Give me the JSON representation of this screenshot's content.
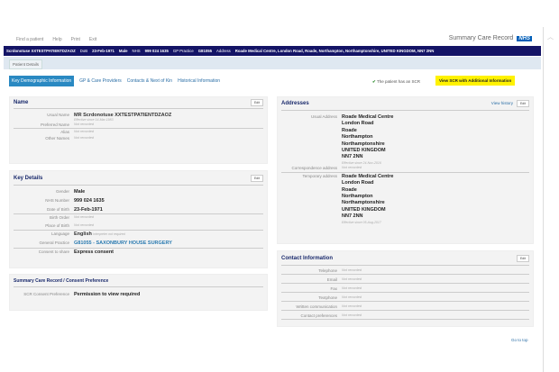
{
  "menu": [
    "Find a patient",
    "Help",
    "Print",
    "Exit"
  ],
  "brand": {
    "title": "Summary Care Record",
    "logo": "NHS"
  },
  "banner": {
    "name": "Scrdonotuse XXTESTPATIENTDZAOZ",
    "dob_label": "DoB",
    "dob": "23-Feb-1971",
    "gender": "Male",
    "nhs_label": "NHS",
    "nhs": "999 024 1635",
    "gp_label": "GP Practice",
    "gp": "G81055",
    "address_label": "Address",
    "address": "Roade Medical Centre, London Road, Roade, Northampton, Northamptonshire, UNITED KINGDOM, NN7 2NN"
  },
  "tab": "Patient Details",
  "subnav": [
    "Key Demographic Information",
    "GP & Care Providers",
    "Contacts & Next of Kin",
    "Historical Information"
  ],
  "scr_note": "The patient has an SCR",
  "scr_button": "View SCR with Additional Information",
  "edit": "Edit",
  "name_panel": {
    "title": "Name",
    "usual_label": "Usual Name",
    "usual": "MR Scrdonotuse XXTESTPATIENTDZAOZ",
    "effective": "Effective since 14-Mar-1983",
    "preferred_label": "Preferred Name",
    "preferred": "Not recorded",
    "alias_label": "Alias",
    "alias": "Not recorded",
    "other_label": "Other Names",
    "other": "Not recorded"
  },
  "key_panel": {
    "title": "Key Details",
    "rows": [
      {
        "label": "Gender",
        "value": "Male"
      },
      {
        "label": "NHS Number",
        "value": "999 024 1635"
      },
      {
        "label": "Date of Birth",
        "value": "23-Feb-1971"
      },
      {
        "label": "Birth Order",
        "value": "Not recorded"
      },
      {
        "label": "Place of Birth",
        "value": "Not recorded"
      },
      {
        "label": "Language",
        "value": "English",
        "note": "interpreter not required"
      },
      {
        "label": "General Practice",
        "value": "G81055 - SAXONBURY HOUSE SURGERY"
      },
      {
        "label": "Consent to share",
        "value": "Express consent"
      }
    ]
  },
  "scr_panel": {
    "title": "Summary Care Record / Consent Preference",
    "label": "SCR Consent Preference",
    "value": "Permission to view required"
  },
  "addr_panel": {
    "title": "Addresses",
    "history": "View history",
    "usual_label": "Usual Address",
    "usual": [
      "Roade Medical Centre",
      "London Road",
      "Roade",
      "Northampton",
      "Northamptonshire",
      "UNITED KINGDOM",
      "NN7 2NN"
    ],
    "usual_eff": "Effective since 24-Nov-2016",
    "corr_label": "Correspondence address",
    "corr": "Not recorded",
    "temp_label": "Temporary address",
    "temp": [
      "Roade Medical Centre",
      "London Road",
      "Roade",
      "Northampton",
      "Northamptonshire",
      "UNITED KINGDOM",
      "NN7 2NN"
    ],
    "temp_eff": "Effective since 05-Aug-2017"
  },
  "contact_panel": {
    "title": "Contact Information",
    "rows": [
      {
        "label": "Telephone",
        "value": "Not recorded"
      },
      {
        "label": "Email",
        "value": "Not recorded"
      },
      {
        "label": "Fax",
        "value": "Not recorded"
      },
      {
        "label": "Textphone",
        "value": "Not recorded"
      },
      {
        "label": "Written communication",
        "value": "Not recorded"
      },
      {
        "label": "Contact preferences",
        "value": "Not recorded"
      }
    ]
  },
  "go_top": "Go to top"
}
